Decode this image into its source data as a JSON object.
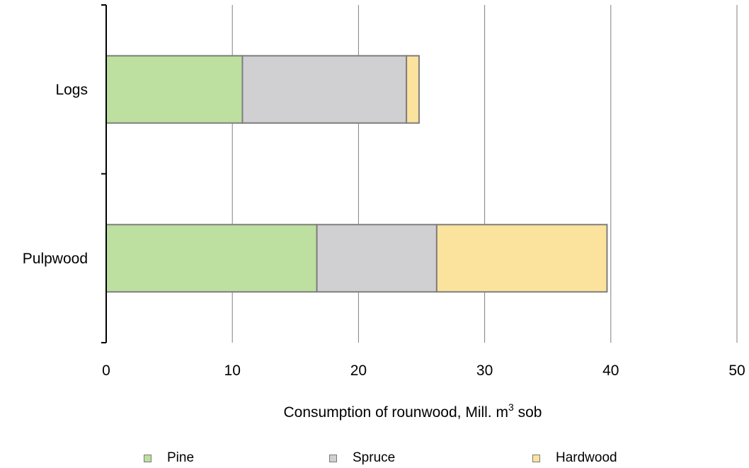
{
  "chart_data": {
    "type": "bar",
    "orientation": "horizontal",
    "stacked": true,
    "categories": [
      "Logs",
      "Pulpwood"
    ],
    "series": [
      {
        "name": "Pine",
        "values": [
          10.8,
          16.7
        ],
        "color": "#bddf9f"
      },
      {
        "name": "Spruce",
        "values": [
          13.0,
          9.5
        ],
        "color": "#d0cfd2"
      },
      {
        "name": "Hardwood",
        "values": [
          1.0,
          13.5
        ],
        "color": "#fbe39e"
      }
    ],
    "xlabel": {
      "main": "Consumption of rounwood, Mill. m",
      "sup": "3",
      "suffix": " sob"
    },
    "xlim": [
      0,
      50
    ],
    "xticks": [
      0,
      10,
      20,
      30,
      40,
      50
    ],
    "grid": "vertical",
    "legend_position": "bottom"
  }
}
